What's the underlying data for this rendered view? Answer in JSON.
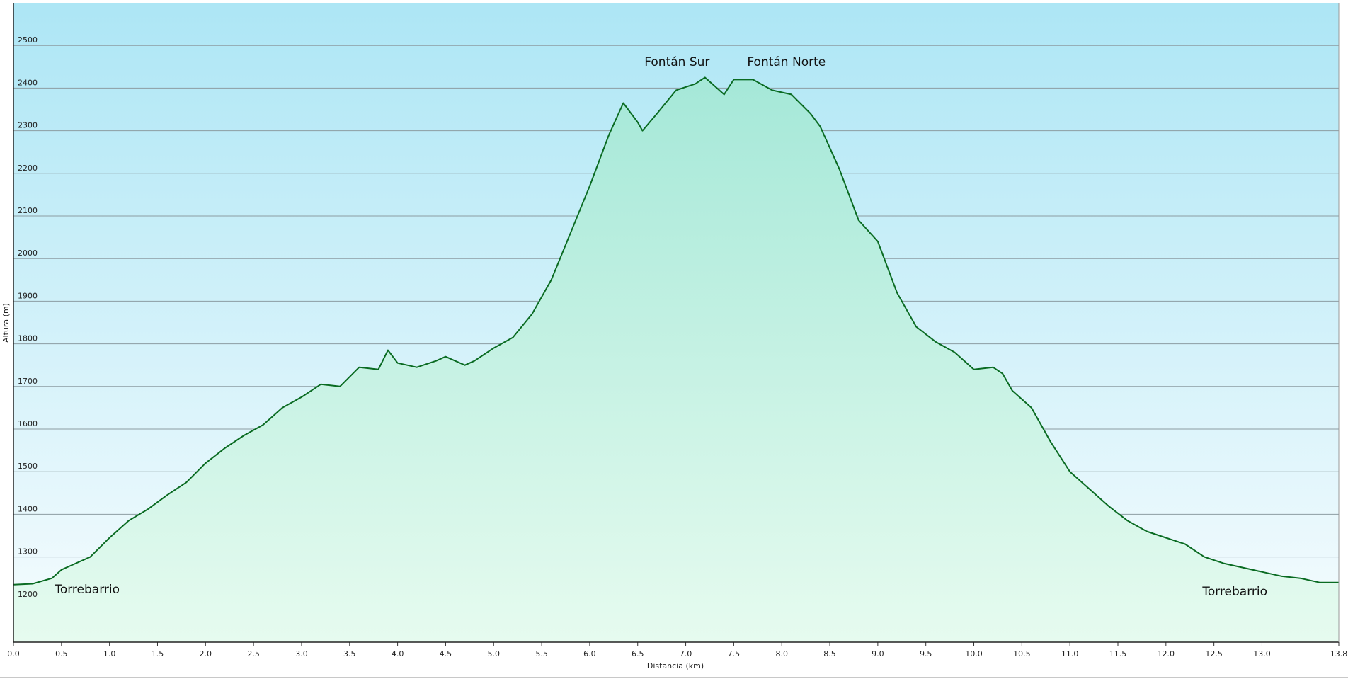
{
  "chart_data": {
    "type": "area",
    "xlabel": "Distancia  (km)",
    "ylabel": "Altura (m)",
    "x": [
      0.0,
      0.2,
      0.4,
      0.5,
      0.6,
      0.8,
      1.0,
      1.2,
      1.4,
      1.6,
      1.8,
      2.0,
      2.2,
      2.4,
      2.6,
      2.8,
      3.0,
      3.2,
      3.4,
      3.6,
      3.8,
      3.9,
      4.0,
      4.2,
      4.4,
      4.5,
      4.7,
      4.8,
      5.0,
      5.2,
      5.4,
      5.6,
      5.8,
      6.0,
      6.2,
      6.35,
      6.5,
      6.55,
      6.7,
      6.9,
      7.1,
      7.2,
      7.4,
      7.5,
      7.7,
      7.9,
      8.1,
      8.3,
      8.4,
      8.6,
      8.8,
      9.0,
      9.2,
      9.4,
      9.6,
      9.8,
      10.0,
      10.2,
      10.3,
      10.4,
      10.6,
      10.8,
      11.0,
      11.2,
      11.4,
      11.6,
      11.8,
      12.0,
      12.2,
      12.4,
      12.6,
      12.8,
      13.0,
      13.2,
      13.4,
      13.6,
      13.8
    ],
    "values": [
      1235,
      1237,
      1250,
      1270,
      1280,
      1300,
      1345,
      1385,
      1412,
      1445,
      1475,
      1520,
      1555,
      1585,
      1610,
      1650,
      1675,
      1705,
      1700,
      1745,
      1740,
      1785,
      1755,
      1745,
      1760,
      1770,
      1750,
      1760,
      1790,
      1815,
      1870,
      1950,
      2060,
      2170,
      2290,
      2365,
      2320,
      2300,
      2340,
      2395,
      2410,
      2425,
      2385,
      2420,
      2420,
      2395,
      2385,
      2340,
      2310,
      2210,
      2090,
      2040,
      1920,
      1840,
      1805,
      1780,
      1740,
      1745,
      1730,
      1690,
      1650,
      1570,
      1500,
      1460,
      1420,
      1385,
      1360,
      1345,
      1330,
      1300,
      1285,
      1275,
      1265,
      1255,
      1250,
      1240,
      1240
    ],
    "color": "#0a6b22",
    "xlim": [
      0,
      13.8
    ],
    "ylim": [
      1100,
      2600
    ],
    "xticks": [
      {
        "value": 0,
        "label": "0.0"
      },
      0.5,
      {
        "value": 1,
        "label": "1.0"
      },
      1.5,
      {
        "value": 2,
        "label": "2.0"
      },
      2.5,
      {
        "value": 3,
        "label": "3.0"
      },
      3.5,
      {
        "value": 4,
        "label": "4.0"
      },
      4.5,
      {
        "value": 5,
        "label": "5.0"
      },
      5.5,
      {
        "value": 6,
        "label": "6.0"
      },
      6.5,
      {
        "value": 7,
        "label": "7.0"
      },
      7.5,
      {
        "value": 8,
        "label": "8.0"
      },
      8.5,
      {
        "value": 9,
        "label": "9.0"
      },
      9.5,
      {
        "value": 10,
        "label": "10.0"
      },
      10.5,
      {
        "value": 11,
        "label": "11.0"
      },
      11.5,
      {
        "value": 12,
        "label": "12.0"
      },
      12.5,
      {
        "value": 13,
        "label": "13.0"
      },
      13.8
    ],
    "yticks": [
      1200,
      1300,
      1400,
      1500,
      1600,
      1700,
      1800,
      1900,
      2000,
      2100,
      2200,
      2300,
      2400,
      2500
    ],
    "grid": true,
    "annotations": [
      {
        "text": "Torrebarrio",
        "x": 0.43,
        "y": 1215
      },
      {
        "text": "Fontán Sur",
        "x": 6.57,
        "y": 2452
      },
      {
        "text": "Fontán Norte",
        "x": 7.64,
        "y": 2452
      },
      {
        "text": "Torrebarrio",
        "x": 12.38,
        "y": 1210
      }
    ]
  }
}
